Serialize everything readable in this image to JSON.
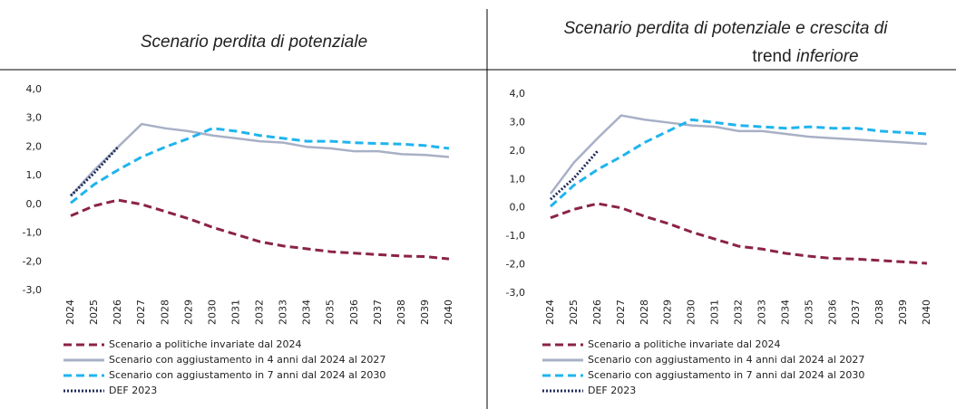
{
  "chart_data": [
    {
      "type": "line",
      "title": "Scenario perdita di potenziale",
      "categories": [
        "2024",
        "2025",
        "2026",
        "2027",
        "2028",
        "2029",
        "2030",
        "2031",
        "2032",
        "2033",
        "2034",
        "2035",
        "2036",
        "2037",
        "2038",
        "2039",
        "2040"
      ],
      "ylim": [
        -3,
        4
      ],
      "yticks": [
        {
          "value": 4,
          "label": "4,0"
        },
        {
          "value": 3,
          "label": "3,0"
        },
        {
          "value": 2,
          "label": "2,0"
        },
        {
          "value": 1,
          "label": "1,0"
        },
        {
          "value": 0,
          "label": "0,0"
        },
        {
          "value": -1,
          "label": "-1,0"
        },
        {
          "value": -2,
          "label": "-2,0"
        },
        {
          "value": -3,
          "label": "-3,0"
        }
      ],
      "series": [
        {
          "name": "Scenario a politiche invariate dal 2024",
          "color": "#8b2346",
          "dash": "dashed",
          "values": [
            -0.4,
            -0.05,
            0.15,
            0.0,
            -0.25,
            -0.5,
            -0.8,
            -1.05,
            -1.3,
            -1.45,
            -1.55,
            -1.65,
            -1.7,
            -1.75,
            -1.8,
            -1.82,
            -1.9
          ]
        },
        {
          "name": "Scenario con aggiustamento in 4 anni dal 2024 al 2027",
          "color": "#a8b0c6",
          "dash": "solid",
          "values": [
            0.3,
            1.2,
            2.0,
            2.8,
            2.65,
            2.55,
            2.4,
            2.3,
            2.2,
            2.15,
            2.0,
            1.95,
            1.85,
            1.85,
            1.75,
            1.72,
            1.65
          ]
        },
        {
          "name": "Scenario con aggiustamento in 7 anni dal 2024 al 2030",
          "color": "#1fb4ee",
          "dash": "dashed",
          "values": [
            0.05,
            0.7,
            1.2,
            1.65,
            2.0,
            2.3,
            2.65,
            2.55,
            2.4,
            2.3,
            2.2,
            2.2,
            2.15,
            2.12,
            2.1,
            2.05,
            1.95
          ]
        },
        {
          "name": "DEF 2023",
          "color": "#1f2a5a",
          "dash": "dotted",
          "values": [
            0.3,
            1.1,
            2.0,
            null,
            null,
            null,
            null,
            null,
            null,
            null,
            null,
            null,
            null,
            null,
            null,
            null,
            null
          ]
        }
      ]
    },
    {
      "type": "line",
      "title": [
        "Scenario perdita di potenziale e crescita di",
        "trend",
        "inferiore"
      ],
      "categories": [
        "2024",
        "2025",
        "2026",
        "2027",
        "2028",
        "2029",
        "2030",
        "2031",
        "2032",
        "2033",
        "2034",
        "2035",
        "2036",
        "2037",
        "2038",
        "2039",
        "2040"
      ],
      "ylim": [
        -3,
        4
      ],
      "yticks": [
        {
          "value": 4,
          "label": "4,0"
        },
        {
          "value": 3,
          "label": "3,0"
        },
        {
          "value": 2,
          "label": "2,0"
        },
        {
          "value": 1,
          "label": "1,0"
        },
        {
          "value": 0,
          "label": "0,0"
        },
        {
          "value": -1,
          "label": "-1,0"
        },
        {
          "value": -2,
          "label": "-2,0"
        },
        {
          "value": -3,
          "label": "-3,0"
        }
      ],
      "series": [
        {
          "name": "Scenario a politiche invariate dal 2024",
          "color": "#8b2346",
          "dash": "dashed",
          "values": [
            -0.35,
            -0.05,
            0.15,
            0.0,
            -0.3,
            -0.55,
            -0.85,
            -1.1,
            -1.35,
            -1.45,
            -1.6,
            -1.7,
            -1.78,
            -1.8,
            -1.85,
            -1.9,
            -1.95
          ]
        },
        {
          "name": "Scenario con aggiustamento in 4 anni dal 2024 al 2027",
          "color": "#a8b0c6",
          "dash": "solid",
          "values": [
            0.5,
            1.6,
            2.45,
            3.25,
            3.1,
            3.0,
            2.9,
            2.85,
            2.7,
            2.7,
            2.6,
            2.5,
            2.45,
            2.4,
            2.35,
            2.3,
            2.25
          ]
        },
        {
          "name": "Scenario con aggiustamento in 7 anni dal 2024 al 2030",
          "color": "#1fb4ee",
          "dash": "dashed",
          "values": [
            0.05,
            0.8,
            1.35,
            1.8,
            2.3,
            2.7,
            3.1,
            3.0,
            2.9,
            2.85,
            2.8,
            2.85,
            2.8,
            2.8,
            2.7,
            2.65,
            2.6
          ]
        },
        {
          "name": "DEF 2023",
          "color": "#1f2a5a",
          "dash": "dotted",
          "values": [
            0.3,
            1.05,
            2.0,
            null,
            null,
            null,
            null,
            null,
            null,
            null,
            null,
            null,
            null,
            null,
            null,
            null,
            null
          ]
        }
      ]
    }
  ]
}
